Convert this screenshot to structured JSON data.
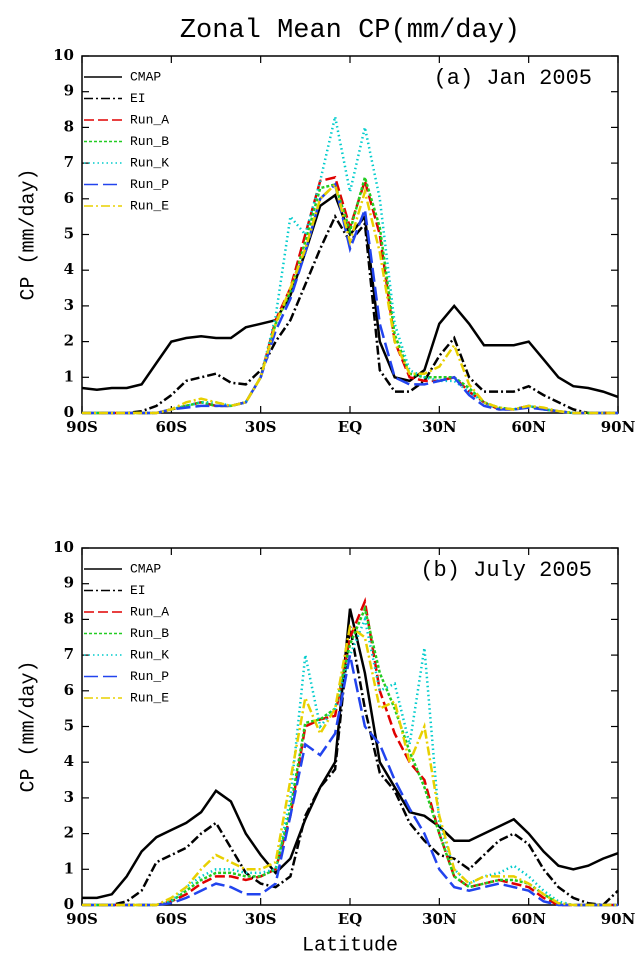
{
  "chart_data": [
    {
      "type": "line",
      "title": "Zonal Mean CP(mm/day)",
      "annotation": "(a) Jan 2005",
      "ylabel": "CP (mm/day)",
      "xlim": [
        -90,
        90
      ],
      "ylim": [
        0,
        10
      ],
      "xticks": [
        {
          "value": -90,
          "label": "90S"
        },
        {
          "value": -60,
          "label": "60S"
        },
        {
          "value": -30,
          "label": "30S"
        },
        {
          "value": 0,
          "label": "EQ"
        },
        {
          "value": 30,
          "label": "30N"
        },
        {
          "value": 60,
          "label": "60N"
        },
        {
          "value": 90,
          "label": "90N"
        }
      ],
      "yticks": [
        0,
        1,
        2,
        3,
        4,
        5,
        6,
        7,
        8,
        9,
        10
      ],
      "legend": "upper left",
      "x": [
        -90,
        -85,
        -80,
        -75,
        -70,
        -65,
        -60,
        -55,
        -50,
        -45,
        -40,
        -35,
        -30,
        -25,
        -20,
        -15,
        -10,
        -5,
        0,
        5,
        10,
        15,
        20,
        25,
        30,
        35,
        40,
        45,
        50,
        55,
        60,
        65,
        70,
        75,
        80,
        85,
        90
      ],
      "series": [
        {
          "name": "CMAP",
          "color": "#000000",
          "style": "solid",
          "values": [
            0.7,
            0.65,
            0.7,
            0.7,
            0.8,
            1.4,
            2.0,
            2.1,
            2.15,
            2.1,
            2.1,
            2.4,
            2.5,
            2.6,
            3.3,
            4.5,
            5.8,
            6.1,
            5.0,
            5.5,
            2.0,
            1.0,
            0.9,
            1.2,
            2.5,
            3.0,
            2.5,
            1.9,
            1.9,
            1.9,
            2.0,
            1.5,
            1.0,
            0.75,
            0.7,
            0.6,
            0.45
          ]
        },
        {
          "name": "EI",
          "color": "#000000",
          "style": "dashdot",
          "values": [
            0,
            0,
            0,
            0,
            0.05,
            0.2,
            0.5,
            0.9,
            1.0,
            1.1,
            0.85,
            0.8,
            1.2,
            2.0,
            2.6,
            3.6,
            4.6,
            5.5,
            4.8,
            5.3,
            1.2,
            0.6,
            0.6,
            0.9,
            1.6,
            2.1,
            1.0,
            0.6,
            0.6,
            0.6,
            0.75,
            0.5,
            0.3,
            0.1,
            0,
            0,
            0
          ]
        },
        {
          "name": "Run_A",
          "color": "#e00000",
          "style": "dashed",
          "values": [
            0,
            0,
            0,
            0,
            0,
            0,
            0.1,
            0.2,
            0.3,
            0.2,
            0.2,
            0.3,
            1.0,
            2.6,
            3.5,
            5.0,
            6.5,
            6.6,
            5.2,
            6.5,
            5.0,
            2.0,
            1.0,
            0.9,
            0.9,
            1.0,
            0.6,
            0.3,
            0.1,
            0.1,
            0.2,
            0.1,
            0.05,
            0,
            0,
            0,
            0
          ]
        },
        {
          "name": "Run_B",
          "color": "#22cc22",
          "style": "shortdash",
          "values": [
            0,
            0,
            0,
            0,
            0,
            0,
            0.1,
            0.2,
            0.3,
            0.2,
            0.2,
            0.3,
            1.0,
            2.5,
            3.4,
            4.8,
            6.3,
            6.4,
            5.1,
            6.6,
            5.2,
            2.2,
            1.1,
            1.0,
            1.0,
            1.0,
            0.7,
            0.3,
            0.15,
            0.1,
            0.2,
            0.1,
            0.05,
            0,
            0,
            0,
            0
          ]
        },
        {
          "name": "Run_K",
          "color": "#00cccc",
          "style": "dotted",
          "values": [
            0,
            0,
            0,
            0,
            0,
            0,
            0.1,
            0.2,
            0.3,
            0.3,
            0.2,
            0.3,
            1.0,
            2.7,
            5.5,
            5.0,
            6.5,
            8.3,
            6.2,
            8.0,
            6.0,
            2.5,
            1.2,
            1.0,
            0.9,
            0.9,
            0.6,
            0.3,
            0.1,
            0.1,
            0.2,
            0.1,
            0.05,
            0,
            0,
            0,
            0
          ]
        },
        {
          "name": "Run_P",
          "color": "#2244ee",
          "style": "longdash",
          "values": [
            0,
            0,
            0,
            0,
            0,
            0,
            0.1,
            0.15,
            0.2,
            0.2,
            0.2,
            0.3,
            1.0,
            2.3,
            3.2,
            4.5,
            6.0,
            6.4,
            4.6,
            5.7,
            2.5,
            1.0,
            0.8,
            0.8,
            0.9,
            1.0,
            0.5,
            0.2,
            0.1,
            0.1,
            0.15,
            0.1,
            0.05,
            0,
            0,
            0,
            0
          ]
        },
        {
          "name": "Run_E",
          "color": "#e8d000",
          "style": "dashdot",
          "values": [
            0,
            0,
            0,
            0,
            0,
            0,
            0.1,
            0.3,
            0.4,
            0.3,
            0.2,
            0.3,
            1.0,
            2.5,
            3.5,
            4.6,
            6.0,
            6.4,
            4.8,
            6.2,
            4.5,
            2.0,
            1.1,
            1.1,
            1.3,
            1.9,
            0.8,
            0.3,
            0.15,
            0.1,
            0.2,
            0.15,
            0.05,
            0,
            0,
            0,
            0
          ]
        }
      ]
    },
    {
      "type": "line",
      "annotation": "(b) July 2005",
      "ylabel": "CP (mm/day)",
      "xlabel": "Latitude",
      "xlim": [
        -90,
        90
      ],
      "ylim": [
        0,
        10
      ],
      "xticks": [
        {
          "value": -90,
          "label": "90S"
        },
        {
          "value": -60,
          "label": "60S"
        },
        {
          "value": -30,
          "label": "30S"
        },
        {
          "value": 0,
          "label": "EQ"
        },
        {
          "value": 30,
          "label": "30N"
        },
        {
          "value": 60,
          "label": "60N"
        },
        {
          "value": 90,
          "label": "90N"
        }
      ],
      "yticks": [
        0,
        1,
        2,
        3,
        4,
        5,
        6,
        7,
        8,
        9,
        10
      ],
      "legend": "upper left",
      "x": [
        -90,
        -85,
        -80,
        -75,
        -70,
        -65,
        -60,
        -55,
        -50,
        -45,
        -40,
        -35,
        -30,
        -25,
        -20,
        -15,
        -10,
        -5,
        0,
        5,
        10,
        15,
        20,
        25,
        30,
        35,
        40,
        45,
        50,
        55,
        60,
        65,
        70,
        75,
        80,
        85,
        90
      ],
      "series": [
        {
          "name": "CMAP",
          "color": "#000000",
          "style": "solid",
          "values": [
            0.2,
            0.2,
            0.3,
            0.8,
            1.5,
            1.9,
            2.1,
            2.3,
            2.6,
            3.2,
            2.9,
            2.0,
            1.4,
            0.9,
            1.3,
            2.4,
            3.3,
            4.0,
            8.3,
            6.5,
            4.0,
            3.3,
            2.6,
            2.5,
            2.2,
            1.8,
            1.8,
            2.0,
            2.2,
            2.4,
            2.0,
            1.5,
            1.1,
            1.0,
            1.1,
            1.3,
            1.45
          ]
        },
        {
          "name": "EI",
          "color": "#000000",
          "style": "dashdot",
          "values": [
            0,
            0,
            0,
            0.1,
            0.4,
            1.2,
            1.4,
            1.6,
            2.0,
            2.3,
            1.6,
            0.9,
            0.6,
            0.5,
            0.8,
            2.5,
            3.3,
            3.8,
            7.8,
            5.5,
            3.7,
            3.2,
            2.3,
            1.8,
            1.4,
            1.3,
            1.0,
            1.4,
            1.8,
            2.0,
            1.7,
            1.0,
            0.5,
            0.2,
            0.05,
            0,
            0.4
          ]
        },
        {
          "name": "Run_A",
          "color": "#e00000",
          "style": "dashed",
          "values": [
            0,
            0,
            0,
            0,
            0,
            0,
            0.1,
            0.3,
            0.6,
            0.8,
            0.8,
            0.7,
            0.8,
            1.0,
            2.5,
            5.0,
            5.2,
            5.3,
            7.5,
            8.5,
            6.0,
            4.8,
            4.0,
            3.5,
            2.0,
            0.8,
            0.5,
            0.6,
            0.7,
            0.6,
            0.5,
            0.2,
            0,
            0,
            0,
            0,
            0
          ]
        },
        {
          "name": "Run_B",
          "color": "#22cc22",
          "style": "shortdash",
          "values": [
            0,
            0,
            0,
            0,
            0,
            0,
            0.1,
            0.4,
            0.7,
            0.9,
            0.9,
            0.8,
            0.8,
            1.0,
            2.7,
            5.1,
            5.2,
            5.5,
            7.3,
            8.3,
            6.5,
            5.5,
            4.3,
            3.3,
            2.0,
            0.8,
            0.5,
            0.6,
            0.7,
            0.7,
            0.6,
            0.3,
            0.05,
            0,
            0,
            0,
            0
          ]
        },
        {
          "name": "Run_K",
          "color": "#00cccc",
          "style": "dotted",
          "values": [
            0,
            0,
            0,
            0,
            0,
            0,
            0.1,
            0.5,
            0.8,
            1.0,
            1.0,
            0.9,
            0.9,
            1.0,
            3.0,
            7.0,
            5.0,
            5.5,
            7.0,
            8.0,
            6.0,
            6.2,
            4.5,
            7.2,
            2.3,
            1.0,
            0.6,
            0.8,
            0.9,
            1.1,
            0.8,
            0.4,
            0.1,
            0,
            0,
            0,
            0
          ]
        },
        {
          "name": "Run_P",
          "color": "#2244ee",
          "style": "longdash",
          "values": [
            0,
            0,
            0,
            0,
            0,
            0,
            0.05,
            0.2,
            0.4,
            0.6,
            0.5,
            0.3,
            0.3,
            0.6,
            2.5,
            4.5,
            4.2,
            4.8,
            7.0,
            5.0,
            4.5,
            3.5,
            2.7,
            2.0,
            1.0,
            0.5,
            0.4,
            0.5,
            0.6,
            0.5,
            0.4,
            0.1,
            0,
            0,
            0,
            0,
            0
          ]
        },
        {
          "name": "Run_E",
          "color": "#e8d000",
          "style": "dashdot",
          "values": [
            0,
            0,
            0,
            0,
            0,
            0,
            0.2,
            0.5,
            1.0,
            1.4,
            1.2,
            1.0,
            1.0,
            1.2,
            3.5,
            5.8,
            4.8,
            5.5,
            7.8,
            7.5,
            5.5,
            5.7,
            4.0,
            5.0,
            2.5,
            1.0,
            0.6,
            0.8,
            0.8,
            0.8,
            0.6,
            0.3,
            0.05,
            0,
            0,
            0,
            0
          ]
        }
      ]
    }
  ]
}
